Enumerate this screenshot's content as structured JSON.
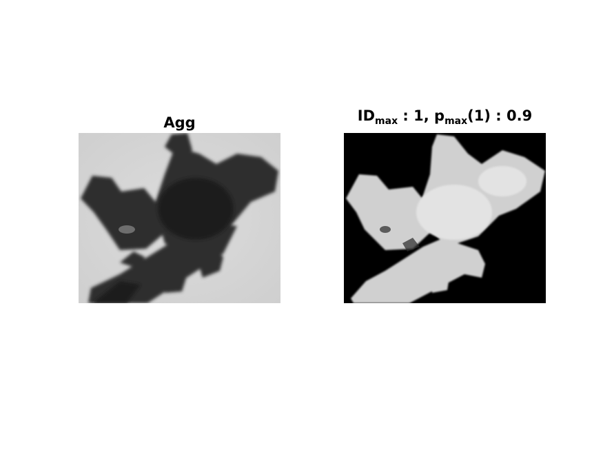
{
  "left_panel": {
    "title": "Agg",
    "background_color": "#d6d6d6",
    "object_color": "#2b2b2b"
  },
  "right_panel": {
    "title_prefix": "ID",
    "title_sub1": "max",
    "title_mid": " : 1, p",
    "title_sub2": "max",
    "title_suffix": "(1) : 0.9",
    "background_color": "#000000",
    "object_color": "#d4d4d4"
  }
}
